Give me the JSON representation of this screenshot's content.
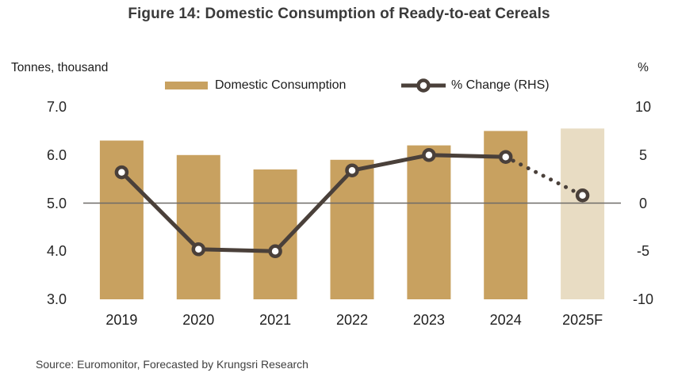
{
  "figure": {
    "title": "Figure 14: Domestic Consumption of Ready-to-eat Cereals",
    "source_text": "Source: Euromonitor, Forecasted by Krungsri Research"
  },
  "chart_data": {
    "type": "bar",
    "subtype": "combo-bar-line",
    "title": "Figure 14: Domestic Consumption of Ready-to-eat Cereals",
    "categories": [
      "2019",
      "2020",
      "2021",
      "2022",
      "2023",
      "2024",
      "2025F"
    ],
    "series": [
      {
        "name": "Domestic Consumption",
        "type": "bar",
        "axis": "left",
        "values": [
          6.3,
          6.0,
          5.7,
          5.9,
          6.2,
          6.5,
          6.55
        ],
        "forecast_from_index": 6
      },
      {
        "name": "% Change (RHS)",
        "type": "line",
        "axis": "right",
        "values": [
          3.2,
          -4.8,
          -5.0,
          3.4,
          5.0,
          4.8,
          0.8
        ],
        "dotted_from_index": 5
      }
    ],
    "left_axis": {
      "label": "Tonnes, thousand",
      "min": 3.0,
      "max": 7.0,
      "ticks": [
        "7.0",
        "6.0",
        "5.0",
        "4.0",
        "3.0"
      ]
    },
    "right_axis": {
      "label": "%",
      "min": -10,
      "max": 10,
      "ticks": [
        "10",
        "5",
        "0",
        "-5",
        "-10"
      ],
      "zero_line": 0
    },
    "legend_position": "top",
    "grid": "off",
    "colors": {
      "bar": "#C8A160",
      "bar_forecast": "#E8DCC3",
      "line": "#4A403A",
      "zero_line": "#6E6B68",
      "marker_fill": "#FFFFFF"
    }
  }
}
